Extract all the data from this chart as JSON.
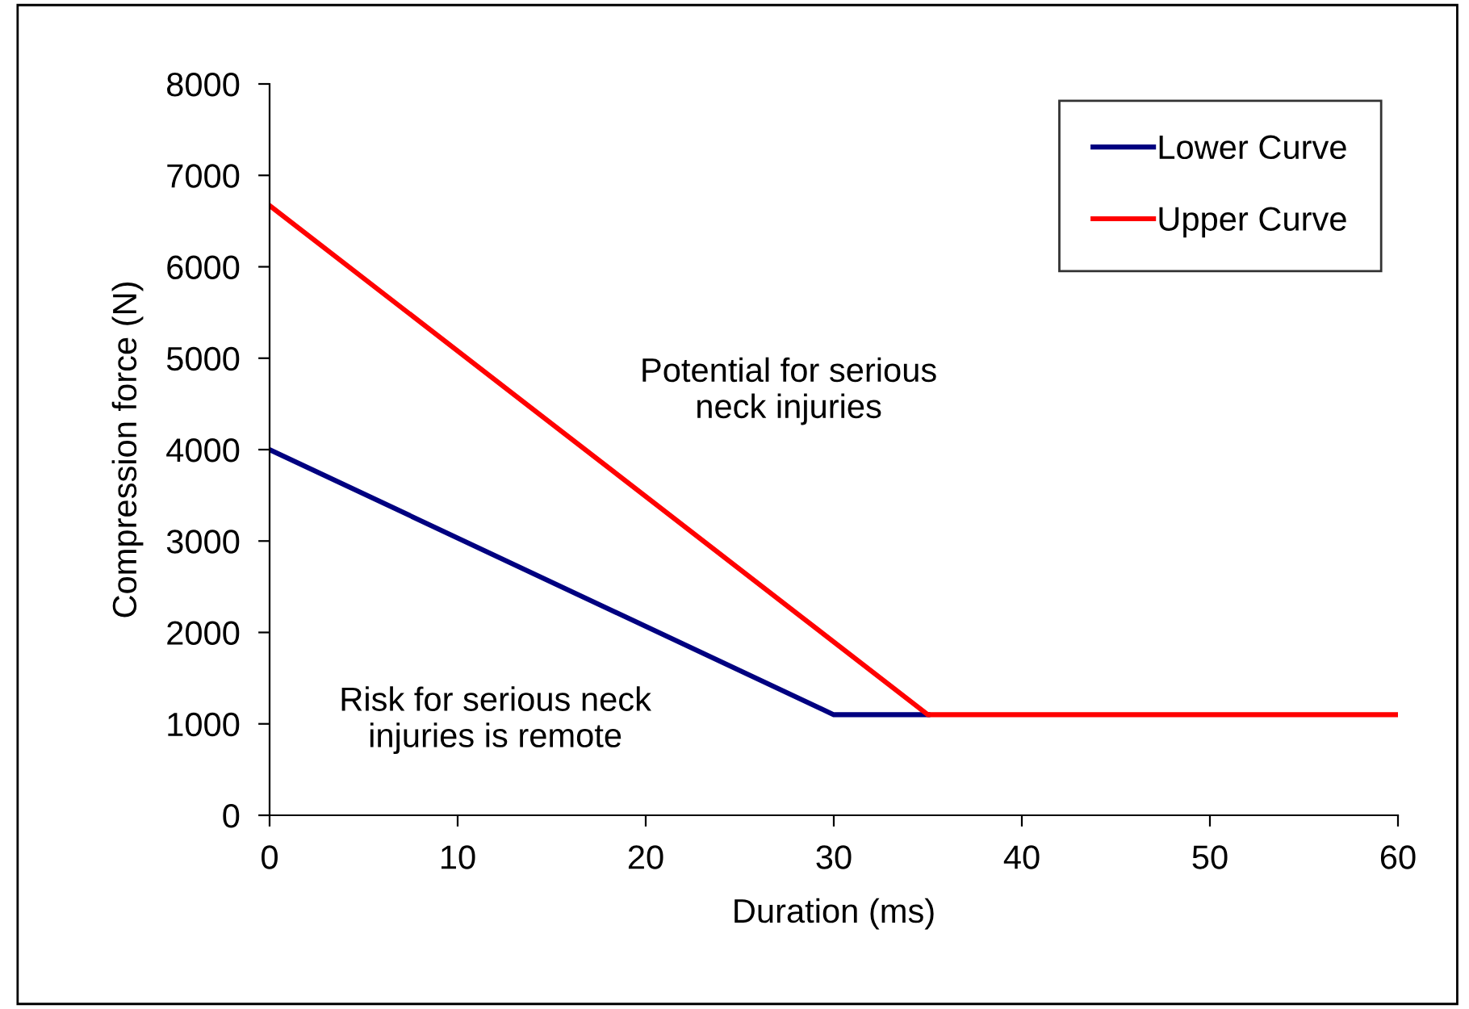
{
  "chart_data": {
    "type": "line",
    "xlabel": "Duration (ms)",
    "ylabel": "Compression force (N)",
    "xlim": [
      0,
      60
    ],
    "xticks": [
      0,
      10,
      20,
      30,
      40,
      50,
      60
    ],
    "ylim": [
      0,
      8000
    ],
    "yticks": [
      0,
      1000,
      2000,
      3000,
      4000,
      5000,
      6000,
      7000,
      8000
    ],
    "series": [
      {
        "name": "Lower Curve",
        "color": "#000080",
        "x": [
          0,
          30,
          35
        ],
        "values": [
          4000,
          1100,
          1100
        ]
      },
      {
        "name": "Upper Curve",
        "color": "#ff0000",
        "x": [
          0,
          35,
          60
        ],
        "values": [
          6670,
          1100,
          1100
        ]
      }
    ],
    "annotations": [
      "Potential for serious\nneck injuries",
      "Risk for serious neck\ninjuries is remote"
    ],
    "legend": "top right",
    "grid": false,
    "marker": "none",
    "line_style": "solid"
  }
}
